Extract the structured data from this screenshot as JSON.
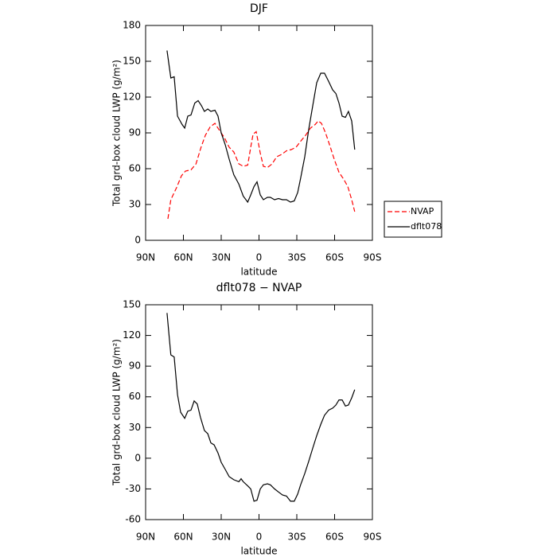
{
  "chart_data": [
    {
      "type": "line",
      "title": "DJF",
      "xlabel": "latitude",
      "ylabel": "Total grd-box cloud LWP (g/m²)",
      "xlim": [
        90,
        -90
      ],
      "ylim": [
        0,
        180
      ],
      "xticks": [
        {
          "value": 90,
          "label": "90N"
        },
        {
          "value": 60,
          "label": "60N"
        },
        {
          "value": 30,
          "label": "30N"
        },
        0,
        {
          "value": -30,
          "label": "30S"
        },
        {
          "value": -60,
          "label": "60S"
        },
        {
          "value": -90,
          "label": "90S"
        }
      ],
      "yticks": [
        0,
        30,
        60,
        90,
        120,
        150,
        180
      ],
      "legend": "right",
      "series": [
        {
          "name": "NVAP",
          "color": "#ff0000",
          "dash": true,
          "x": [
            72.3,
            70,
            65.5,
            61.6,
            58.4,
            54,
            50,
            46,
            42.6,
            38.8,
            35,
            31.3,
            27.5,
            23.7,
            20,
            16,
            12.5,
            9,
            6.6,
            4.7,
            2.2,
            -1,
            -3.5,
            -6.7,
            -10.4,
            -14,
            -18,
            -21.8,
            -25.6,
            -29.4,
            -33,
            -37,
            -40.8,
            -44.5,
            -47,
            -49.6,
            -52.8,
            -56,
            -59.7,
            -63.5,
            -67.3,
            -70.5,
            -73.6,
            -76
          ],
          "values": [
            18,
            34,
            44,
            54,
            58,
            59,
            64,
            78,
            88,
            95,
            98,
            92,
            86,
            78,
            74,
            64,
            62,
            63,
            78,
            89,
            91,
            73,
            62,
            61,
            64,
            70,
            72,
            75,
            76,
            78,
            83,
            88,
            94,
            97,
            100,
            98,
            90,
            80,
            68,
            57,
            51,
            45,
            34,
            24
          ]
        },
        {
          "name": "dflt078",
          "color": "#000000",
          "dash": false,
          "x": [
            73,
            70,
            67.3,
            64.7,
            61,
            59,
            56.5,
            54,
            51,
            48.3,
            45.8,
            43.3,
            40.7,
            38.2,
            35,
            32.5,
            30,
            26.8,
            23.7,
            20,
            16,
            12.5,
            9,
            6.6,
            4,
            1.6,
            -1,
            -3.5,
            -6.7,
            -9,
            -12.3,
            -15.5,
            -18.7,
            -21.8,
            -25,
            -28,
            -30.7,
            -33,
            -36.3,
            -39.5,
            -42.7,
            -45.8,
            -49,
            -52,
            -55.3,
            -58.5,
            -61,
            -63.5,
            -66,
            -68.6,
            -71,
            -73.6,
            -76
          ],
          "values": [
            159,
            136,
            137,
            104,
            97,
            94,
            104,
            105,
            115,
            117,
            113,
            108,
            110,
            108,
            109,
            104,
            90,
            80,
            68,
            55,
            47,
            37,
            32,
            38,
            45,
            49,
            38,
            34,
            36,
            36,
            34,
            35,
            34,
            34,
            32,
            33,
            40,
            52,
            70,
            93,
            113,
            132,
            140,
            140,
            133,
            126,
            123,
            115,
            104,
            103,
            108,
            100,
            76
          ]
        }
      ]
    },
    {
      "type": "line",
      "title": "dflt078 − NVAP",
      "xlabel": "latitude",
      "ylabel": "Total grd-box cloud LWP (g/m²)",
      "xlim": [
        90,
        -90
      ],
      "ylim": [
        -60,
        150
      ],
      "xticks": [
        {
          "value": 90,
          "label": "90N"
        },
        {
          "value": 60,
          "label": "60N"
        },
        {
          "value": 30,
          "label": "30N"
        },
        0,
        {
          "value": -30,
          "label": "30S"
        },
        {
          "value": -60,
          "label": "60S"
        },
        {
          "value": -90,
          "label": "90S"
        }
      ],
      "yticks": [
        -60,
        -30,
        0,
        30,
        60,
        90,
        120,
        150
      ],
      "series": [
        {
          "color": "#000000",
          "dash": false,
          "x": [
            73,
            70,
            67.3,
            64.7,
            62.2,
            59,
            56.5,
            54,
            51.5,
            49,
            46.5,
            43.3,
            40.7,
            38.2,
            35.6,
            32.5,
            30,
            26.8,
            23.7,
            20,
            16,
            14.2,
            12.5,
            9,
            6.6,
            4,
            1.6,
            -1,
            -3.5,
            -6.7,
            -9,
            -12.3,
            -15.5,
            -18.7,
            -21.8,
            -25,
            -28,
            -30.7,
            -33,
            -36.3,
            -39.5,
            -42.7,
            -45.8,
            -49,
            -52,
            -55.3,
            -58.5,
            -61,
            -63.5,
            -66,
            -68.6,
            -71,
            -73.6,
            -76
          ],
          "values": [
            142,
            101,
            99,
            62,
            45,
            39,
            46,
            47,
            56,
            53,
            40,
            27,
            24,
            15,
            13,
            5,
            -4,
            -11,
            -18,
            -21,
            -23,
            -20,
            -23,
            -27,
            -30,
            -42,
            -41,
            -30,
            -26,
            -25,
            -26,
            -30,
            -33,
            -36,
            -37,
            -42,
            -42,
            -35,
            -26,
            -15,
            -3,
            10,
            22,
            33,
            42,
            47,
            49,
            52,
            57,
            57,
            51,
            52,
            59,
            67
          ]
        }
      ]
    }
  ]
}
